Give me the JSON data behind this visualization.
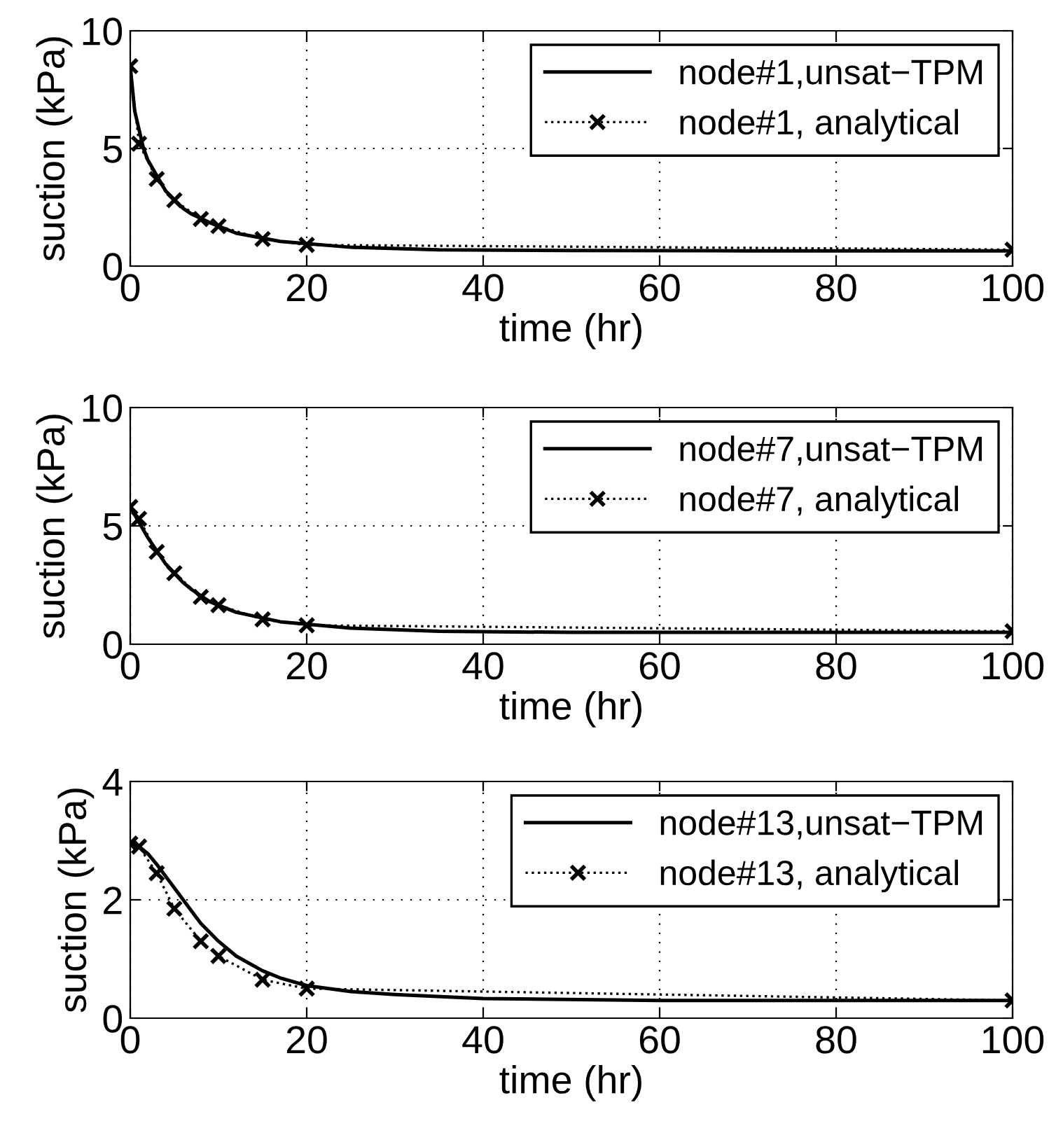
{
  "chart_data": [
    {
      "type": "line",
      "xlabel": "time (hr)",
      "ylabel": "suction (kPa)",
      "xlim": [
        0,
        100
      ],
      "xticks": [
        0,
        20,
        40,
        60,
        80,
        100
      ],
      "ylim": [
        0,
        10
      ],
      "yticks": [
        0,
        5,
        10
      ],
      "grid": true,
      "legend": "top right",
      "series": [
        {
          "name": "node#1,unsat−TPM",
          "color": "#000000",
          "line_style": "solid",
          "marker": "none",
          "x": [
            0,
            0.5,
            1.5,
            2,
            4,
            6,
            7,
            9,
            12,
            17,
            25,
            35,
            50,
            70,
            100
          ],
          "values": [
            8.5,
            6.6,
            5.0,
            4.5,
            3.2,
            2.45,
            2.2,
            1.85,
            1.4,
            1.05,
            0.8,
            0.69,
            0.66,
            0.65,
            0.65
          ]
        },
        {
          "name": "node#1, analytical",
          "color": "#000000",
          "line_style": "dotted",
          "marker": "cross",
          "x": [
            0,
            1,
            3,
            5,
            8,
            10,
            15,
            20,
            100
          ],
          "values": [
            8.5,
            5.2,
            3.7,
            2.8,
            2.0,
            1.7,
            1.15,
            0.9,
            0.7
          ]
        }
      ]
    },
    {
      "type": "line",
      "xlabel": "time (hr)",
      "ylabel": "suction (kPa)",
      "xlim": [
        0,
        100
      ],
      "xticks": [
        0,
        20,
        40,
        60,
        80,
        100
      ],
      "ylim": [
        0,
        10
      ],
      "yticks": [
        0,
        5,
        10
      ],
      "grid": true,
      "legend": "top right",
      "series": [
        {
          "name": "node#7,unsat−TPM",
          "color": "#000000",
          "line_style": "solid",
          "marker": "none",
          "x": [
            0,
            2,
            4,
            6,
            7,
            9,
            12,
            17,
            25,
            35,
            50,
            70,
            100
          ],
          "values": [
            5.8,
            4.5,
            3.4,
            2.6,
            2.3,
            1.8,
            1.35,
            0.95,
            0.68,
            0.55,
            0.5,
            0.5,
            0.5
          ]
        },
        {
          "name": "node#7, analytical",
          "color": "#000000",
          "line_style": "dotted",
          "marker": "cross",
          "x": [
            0,
            1,
            3,
            5,
            8,
            10,
            15,
            20,
            100
          ],
          "values": [
            5.8,
            5.3,
            3.9,
            3.0,
            2.0,
            1.65,
            1.05,
            0.8,
            0.55
          ]
        }
      ]
    },
    {
      "type": "line",
      "xlabel": "time (hr)",
      "ylabel": "suction (kPa)",
      "xlim": [
        0,
        100
      ],
      "xticks": [
        0,
        20,
        40,
        60,
        80,
        100
      ],
      "ylim": [
        0,
        4
      ],
      "yticks": [
        0,
        2,
        4
      ],
      "grid": true,
      "legend": "top right",
      "series": [
        {
          "name": "node#13,unsat−TPM",
          "color": "#000000",
          "line_style": "solid",
          "marker": "none",
          "x": [
            0,
            1,
            2,
            3,
            4,
            5,
            6,
            7,
            8,
            10,
            12,
            15,
            17,
            20,
            25,
            30,
            40,
            60,
            100
          ],
          "values": [
            2.95,
            2.9,
            2.78,
            2.6,
            2.4,
            2.2,
            2.0,
            1.8,
            1.6,
            1.3,
            1.05,
            0.8,
            0.68,
            0.55,
            0.45,
            0.4,
            0.33,
            0.3,
            0.3
          ]
        },
        {
          "name": "node#13, analytical",
          "color": "#000000",
          "line_style": "dotted",
          "marker": "cross",
          "x": [
            0,
            1,
            3,
            5,
            8,
            10,
            15,
            20,
            100
          ],
          "values": [
            2.95,
            2.9,
            2.45,
            1.85,
            1.3,
            1.05,
            0.65,
            0.5,
            0.3
          ]
        }
      ]
    }
  ]
}
